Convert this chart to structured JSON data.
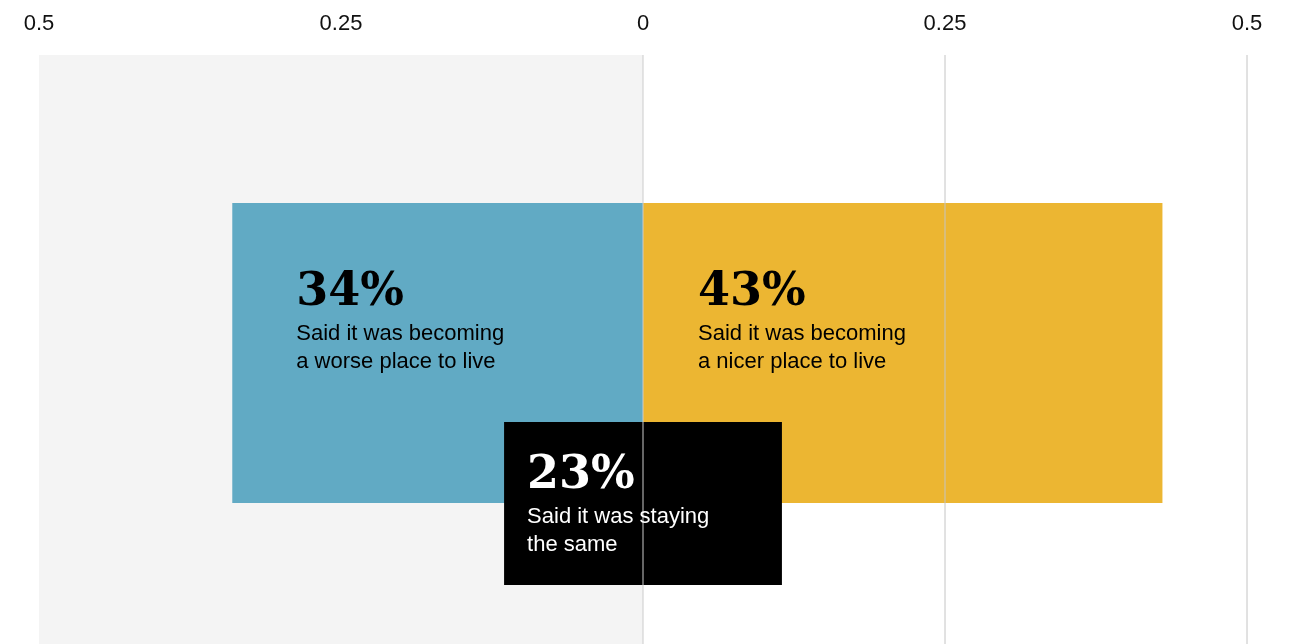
{
  "chart_data": {
    "type": "bar",
    "orientation": "horizontal",
    "categories": [
      null
    ],
    "xlim": [
      -0.5,
      0.5
    ],
    "xticks": [
      {
        "value": -0.5,
        "label": "0.5"
      },
      {
        "value": -0.25,
        "label": "0.25"
      },
      0,
      0.25,
      0.5
    ],
    "series": [
      {
        "name": "Said it was becoming a worse place to live",
        "color": "#61aac4",
        "values": [
          0.34
        ],
        "base": [
          -0.34
        ],
        "value_labels": [
          "34%"
        ]
      },
      {
        "name": "Said it was becoming a nicer place to live",
        "color": "#ecb632",
        "values": [
          0.43
        ],
        "value_labels": [
          "43%"
        ]
      },
      {
        "name": "Said it was staying the same",
        "color": "#000000",
        "values": [
          0.23
        ],
        "base": [
          -0.115
        ],
        "value_labels": [
          "23%"
        ]
      }
    ],
    "bands": [
      {
        "axis": "x",
        "from": -0.5,
        "to": 0,
        "color": "#f4f4f4"
      }
    ],
    "ref_lines": [
      {
        "axis": "x",
        "value": 0,
        "color": "#cccccc"
      },
      {
        "axis": "x",
        "value": 0.25,
        "color": "#c4c4c4"
      },
      {
        "axis": "x",
        "value": 0.5,
        "color": "#c4c4c4"
      }
    ],
    "grid": false,
    "legend": false
  }
}
